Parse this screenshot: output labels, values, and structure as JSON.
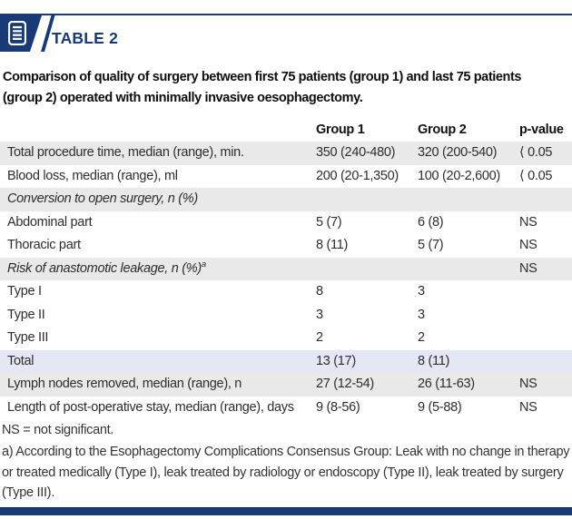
{
  "colors": {
    "navy": "#183a78",
    "row_gray": "#e9e9e9",
    "row_blue": "#e3e8f4"
  },
  "header": {
    "icon": "document-lines-icon",
    "table_label": "TABLE 2"
  },
  "caption": {
    "line1": "Comparison of quality of surgery between first 75 patients (group 1) and last 75 patients",
    "line2": "(group 2) operated with minimally invasive oesophagectomy."
  },
  "table": {
    "columns": {
      "group1": "Group 1",
      "group2": "Group 2",
      "p": "p-value"
    },
    "rows": [
      {
        "label": "Total procedure time, median (range), min.",
        "g1": "350 (240-480)",
        "g2": "320 (200-540)",
        "p": "⟨ 0.05",
        "bg": "gray"
      },
      {
        "label": "Blood loss, median (range), ml",
        "g1": "200 (20-1,350)",
        "g2": "100 (20-2,600)",
        "p": "⟨ 0.05",
        "bg": "white"
      },
      {
        "label": "Conversion to open surgery, n (%)",
        "italic": true,
        "bg": "gray"
      },
      {
        "label": "Abdominal part",
        "g1": "5 (7)",
        "g2": "6 (8)",
        "p": "NS",
        "bg": "white"
      },
      {
        "label": "Thoracic part",
        "g1": "8 (11)",
        "g2": "5 (7)",
        "p": "NS",
        "bg": "white"
      },
      {
        "label": "Risk of anastomotic leakage, n (%)",
        "sup": "a",
        "italic": true,
        "p": "NS",
        "bg": "gray"
      },
      {
        "label": "Type I",
        "g1": "8",
        "g2": "3",
        "bg": "white"
      },
      {
        "label": "Type II",
        "g1": "3",
        "g2": "3",
        "bg": "white"
      },
      {
        "label": "Type III",
        "g1": "2",
        "g2": "2",
        "bg": "white"
      },
      {
        "label": "Total",
        "g1": "13 (17)",
        "g2": "8 (11)",
        "bg": "blue"
      },
      {
        "label": "Lymph nodes removed, median (range), n",
        "g1": "27 (12-54)",
        "g2": "26 (11-63)",
        "p": "NS",
        "bg": "gray"
      },
      {
        "label": "Length of post-operative stay, median (range), days",
        "g1": "9 (8-56)",
        "g2": "9 (5-88)",
        "p": "NS",
        "bg": "white"
      }
    ]
  },
  "footer": {
    "ns_note": "NS = not significant.",
    "footnote": "a) According to the Esophagectomy Complications Consensus Group: Leak with no change in therapy or treated medically (Type I), leak treated by radiology or endoscopy (Type II), leak treated by surgery (Type III)."
  }
}
